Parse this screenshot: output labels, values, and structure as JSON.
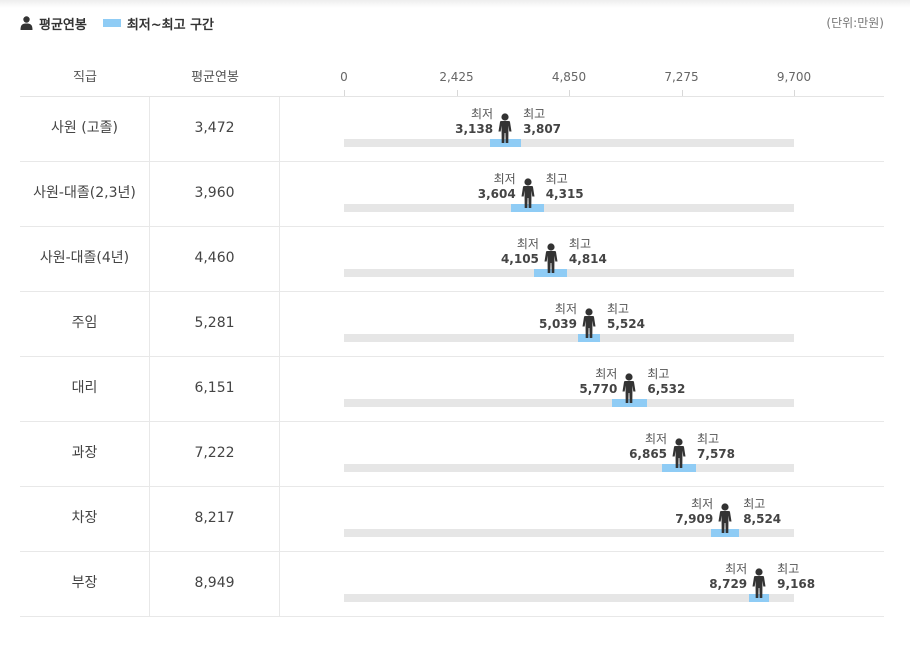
{
  "legend": {
    "avg_label": "평균연봉",
    "range_label": "최저~최고 구간"
  },
  "unit": "(단위:만원)",
  "colors": {
    "range": "#8fccf5",
    "track": "#e6e6e6",
    "person": "#333333"
  },
  "table": {
    "headers": {
      "grade": "직급",
      "avg": "평균연봉"
    },
    "min_title": "최저",
    "max_title": "최고"
  },
  "chart_data": {
    "type": "range-bar",
    "axis": {
      "min": 0,
      "max": 9700,
      "ticks": [
        "0",
        "2,425",
        "4,850",
        "7,275",
        "9,700"
      ],
      "tick_values": [
        0,
        2425,
        4850,
        7275,
        9700
      ]
    },
    "rows": [
      {
        "grade": "사원 (고졸)",
        "avg": 3472,
        "avg_text": "3,472",
        "min": 3138,
        "min_text": "3,138",
        "max": 3807,
        "max_text": "3,807"
      },
      {
        "grade": "사원-대졸(2,3년)",
        "avg": 3960,
        "avg_text": "3,960",
        "min": 3604,
        "min_text": "3,604",
        "max": 4315,
        "max_text": "4,315"
      },
      {
        "grade": "사원-대졸(4년)",
        "avg": 4460,
        "avg_text": "4,460",
        "min": 4105,
        "min_text": "4,105",
        "max": 4814,
        "max_text": "4,814"
      },
      {
        "grade": "주임",
        "avg": 5281,
        "avg_text": "5,281",
        "min": 5039,
        "min_text": "5,039",
        "max": 5524,
        "max_text": "5,524"
      },
      {
        "grade": "대리",
        "avg": 6151,
        "avg_text": "6,151",
        "min": 5770,
        "min_text": "5,770",
        "max": 6532,
        "max_text": "6,532"
      },
      {
        "grade": "과장",
        "avg": 7222,
        "avg_text": "7,222",
        "min": 6865,
        "min_text": "6,865",
        "max": 7578,
        "max_text": "7,578"
      },
      {
        "grade": "차장",
        "avg": 8217,
        "avg_text": "8,217",
        "min": 7909,
        "min_text": "7,909",
        "max": 8524,
        "max_text": "8,524"
      },
      {
        "grade": "부장",
        "avg": 8949,
        "avg_text": "8,949",
        "min": 8729,
        "min_text": "8,729",
        "max": 9168,
        "max_text": "9,168"
      }
    ]
  }
}
